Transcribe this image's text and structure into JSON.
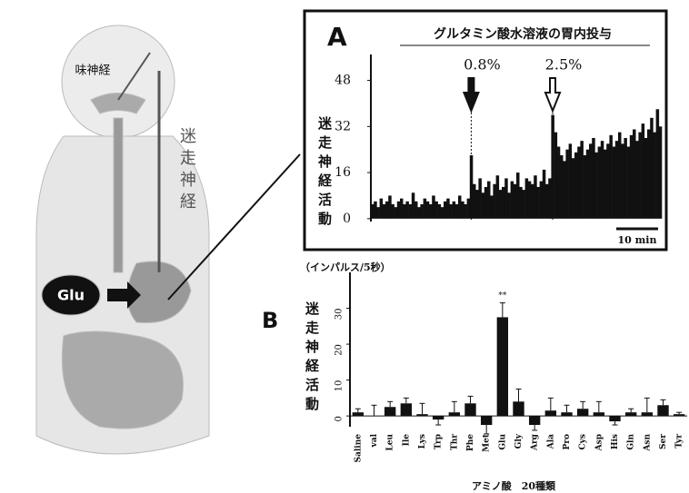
{
  "diagram": {
    "labels": [
      "味神経",
      "迷走神経",
      "Glu"
    ]
  },
  "chart_data": [
    {
      "type": "bar",
      "panel": "A",
      "title": "グルタミン酸水溶液の胃内投与",
      "ylabel": "迷走神経活動",
      "annotations": [
        "0.8%",
        "2.5%"
      ],
      "scale_bar": "10 min",
      "color": "#111111",
      "ylim": [
        -1,
        57
      ],
      "yticks": [
        0,
        16,
        32,
        48
      ],
      "values": [
        5,
        6,
        4,
        7,
        5,
        6,
        8,
        5,
        4,
        6,
        7,
        5,
        6,
        5,
        9,
        6,
        4,
        5,
        7,
        6,
        5,
        8,
        6,
        5,
        4,
        6,
        7,
        5,
        6,
        5,
        8,
        6,
        5,
        7,
        22,
        12,
        10,
        14,
        9,
        11,
        13,
        8,
        12,
        15,
        10,
        11,
        14,
        9,
        13,
        12,
        16,
        11,
        10,
        14,
        13,
        12,
        15,
        11,
        13,
        17,
        12,
        14,
        36,
        30,
        25,
        22,
        20,
        24,
        26,
        21,
        23,
        25,
        27,
        22,
        24,
        26,
        28,
        23,
        25,
        27,
        24,
        26,
        29,
        25,
        27,
        30,
        26,
        28,
        25,
        29,
        31,
        27,
        30,
        33,
        28,
        31,
        35,
        30,
        38,
        32
      ]
    },
    {
      "type": "bar",
      "panel": "B",
      "unit": "（インパルス/5秒）",
      "ylabel": "迷走神経活動",
      "xlabel": "アミノ酸　20種類",
      "annotation": "**",
      "color": "#111111",
      "ylim": [
        -3,
        40
      ],
      "yticks": [
        0,
        10,
        20,
        30
      ],
      "categories": [
        "Saline",
        "val",
        "Leu",
        "Ile",
        "Lys",
        "Trp",
        "Thr",
        "Phe",
        "Met",
        "Glu",
        "Gly",
        "Arg",
        "Ala",
        "Pro",
        "Cys",
        "Asp",
        "His",
        "Gln",
        "Asn",
        "Ser",
        "Tyr"
      ],
      "values": [
        1,
        0,
        2.5,
        3.5,
        0.5,
        -1,
        1,
        3.5,
        -2.5,
        27.5,
        4,
        -2.5,
        1.5,
        1,
        2,
        1,
        -1.5,
        1,
        1,
        3,
        0.5
      ],
      "errors": [
        1,
        3,
        1.5,
        1.5,
        3,
        1.5,
        3,
        2,
        2.5,
        4,
        3.5,
        1.5,
        3.5,
        2,
        2,
        3,
        1,
        1,
        4,
        1.5,
        0.5
      ]
    }
  ]
}
